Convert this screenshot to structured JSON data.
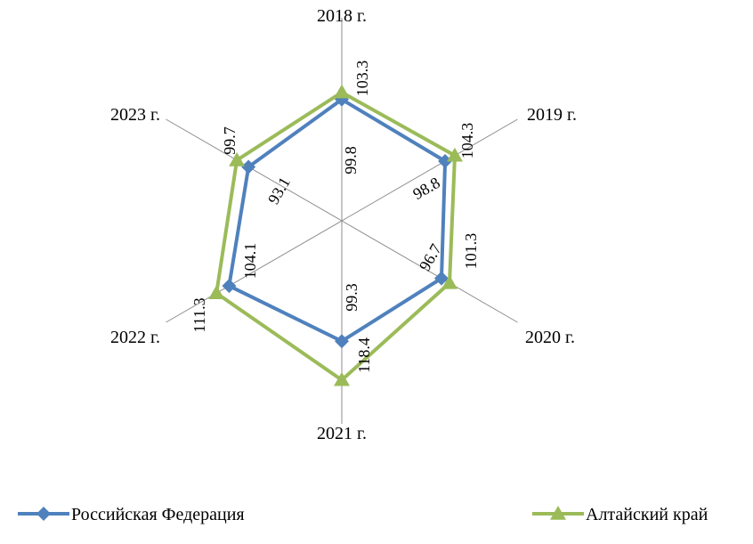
{
  "chart_data": {
    "type": "radar",
    "categories": [
      "2018 г.",
      "2019 г.",
      "2020 г.",
      "2021 г.",
      "2022 г.",
      "2023 г."
    ],
    "series": [
      {
        "name": "Российская Федерация",
        "color": "#4F81BD",
        "marker": "diamond",
        "values": [
          99.8,
          98.8,
          96.7,
          99.3,
          104.1,
          93.1
        ]
      },
      {
        "name": "Алтайский край",
        "color": "#9BBB59",
        "marker": "triangle",
        "values": [
          103.3,
          104.3,
          101.3,
          118.4,
          111.3,
          99.7
        ]
      }
    ],
    "value_labels": {
      "inner": [
        "99.8",
        "98.8",
        "96.7",
        "99.3",
        "104.1",
        "93.1"
      ],
      "outer": [
        "103.3",
        "104.3",
        "101.3",
        "118.4",
        "111.3",
        "99.7"
      ]
    },
    "grid": "spokes-only",
    "legend": "bottom"
  }
}
